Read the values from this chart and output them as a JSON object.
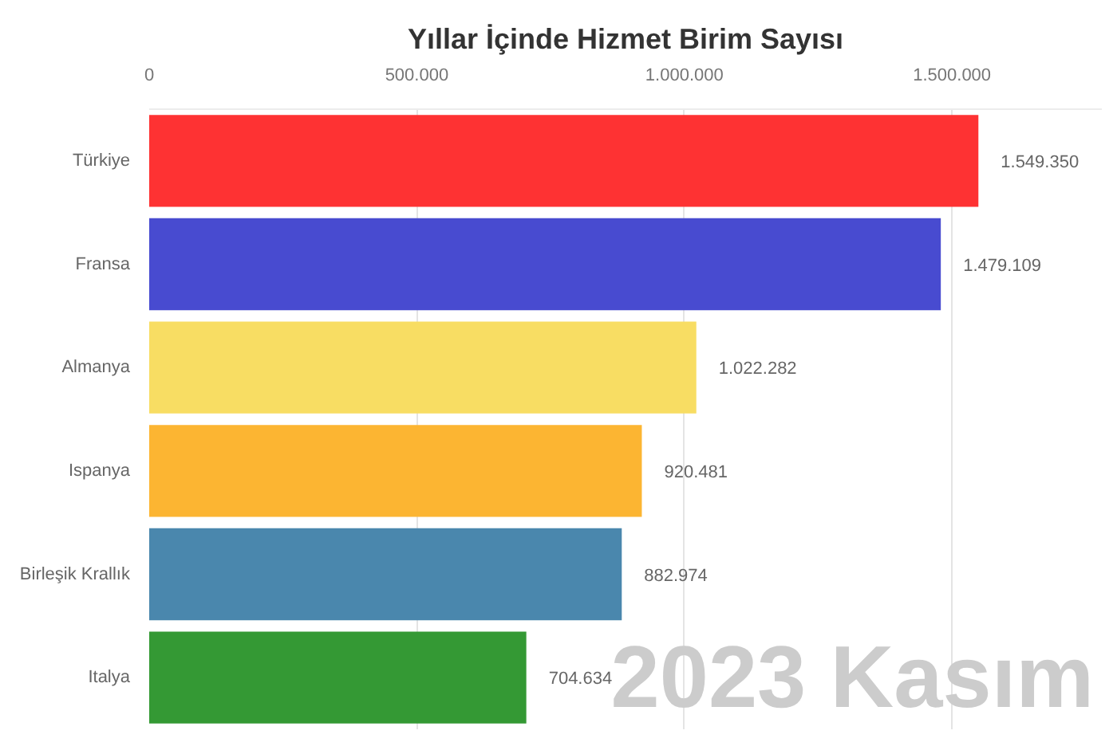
{
  "chart_data": {
    "type": "bar",
    "orientation": "horizontal",
    "title": "Yıllar İçinde Hizmet Birim Sayısı",
    "categories": [
      "Türkiye",
      "Fransa",
      "Almanya",
      "Ispanya",
      "Birleşik Krallık",
      "Italya"
    ],
    "values": [
      1549350,
      1479109,
      1022282,
      920481,
      882974,
      704634
    ],
    "colors": [
      "#fe3233",
      "#484bd0",
      "#f8dd63",
      "#fcb532",
      "#4a87ad",
      "#349934"
    ],
    "value_labels": [
      "1.549.350",
      "1.479.109",
      "1.022.282",
      "920.481",
      "882.974",
      "704.634"
    ],
    "xlim": [
      0,
      1780000
    ],
    "xticks": [
      0,
      {
        "value": 500000,
        "label": "500.000"
      },
      {
        "value": 1000000,
        "label": "1.000.000"
      },
      {
        "value": 1500000,
        "label": "1.500.000"
      }
    ],
    "grid": "x",
    "annotations": [
      "2023 Kasım"
    ]
  }
}
